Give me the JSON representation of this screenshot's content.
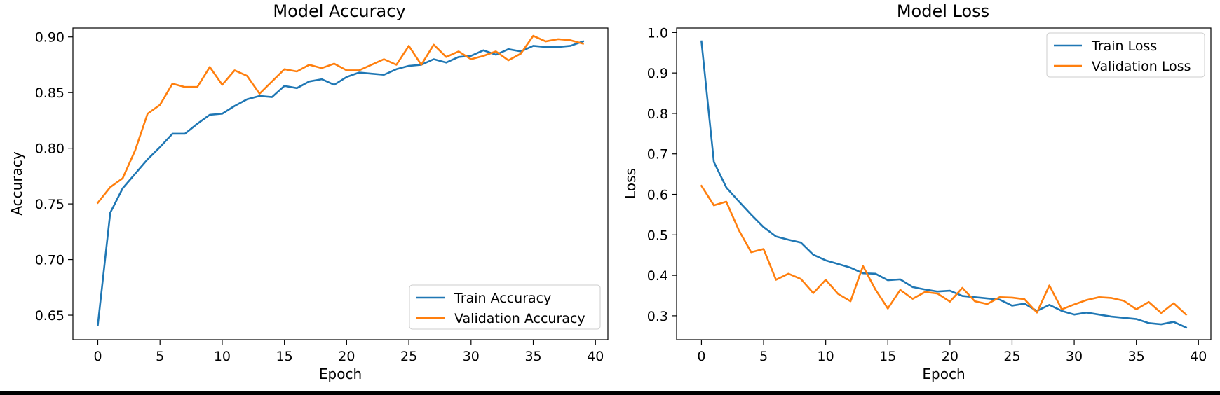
{
  "chart_data": [
    {
      "type": "line",
      "title": "Model Accuracy",
      "xlabel": "Epoch",
      "ylabel": "Accuracy",
      "xlim": [
        -2,
        41
      ],
      "ylim": [
        0.628,
        0.908
      ],
      "xticks": [
        0,
        5,
        10,
        15,
        20,
        25,
        30,
        35,
        40
      ],
      "yticks": [
        0.65,
        0.7,
        0.75,
        0.8,
        0.85,
        0.9
      ],
      "ytick_labels": [
        "0.65",
        "0.70",
        "0.75",
        "0.80",
        "0.85",
        "0.90"
      ],
      "grid": false,
      "legend_position": "lower-right",
      "x": [
        0,
        1,
        2,
        3,
        4,
        5,
        6,
        7,
        8,
        9,
        10,
        11,
        12,
        13,
        14,
        15,
        16,
        17,
        18,
        19,
        20,
        21,
        22,
        23,
        24,
        25,
        26,
        27,
        28,
        29,
        30,
        31,
        32,
        33,
        34,
        35,
        36,
        37,
        38,
        39
      ],
      "series": [
        {
          "name": "Train Accuracy",
          "color": "#1f77b4",
          "values": [
            0.641,
            0.742,
            0.764,
            0.777,
            0.79,
            0.801,
            0.813,
            0.813,
            0.822,
            0.83,
            0.831,
            0.838,
            0.844,
            0.847,
            0.846,
            0.856,
            0.854,
            0.86,
            0.862,
            0.857,
            0.864,
            0.868,
            0.867,
            0.866,
            0.871,
            0.874,
            0.875,
            0.88,
            0.877,
            0.882,
            0.883,
            0.888,
            0.884,
            0.889,
            0.887,
            0.892,
            0.891,
            0.891,
            0.892,
            0.896
          ]
        },
        {
          "name": "Validation Accuracy",
          "color": "#ff7f0e",
          "values": [
            0.751,
            0.765,
            0.773,
            0.798,
            0.831,
            0.839,
            0.858,
            0.855,
            0.855,
            0.873,
            0.857,
            0.87,
            0.865,
            0.849,
            0.86,
            0.871,
            0.869,
            0.875,
            0.872,
            0.876,
            0.87,
            0.87,
            0.875,
            0.88,
            0.875,
            0.892,
            0.875,
            0.893,
            0.882,
            0.887,
            0.88,
            0.883,
            0.887,
            0.879,
            0.885,
            0.901,
            0.896,
            0.898,
            0.897,
            0.894
          ]
        }
      ]
    },
    {
      "type": "line",
      "title": "Model Loss",
      "xlabel": "Epoch",
      "ylabel": "Loss",
      "xlim": [
        -2,
        41
      ],
      "ylim": [
        0.241,
        1.011
      ],
      "xticks": [
        0,
        5,
        10,
        15,
        20,
        25,
        30,
        35,
        40
      ],
      "yticks": [
        0.3,
        0.4,
        0.5,
        0.6,
        0.7,
        0.8,
        0.9,
        1.0
      ],
      "ytick_labels": [
        "0.3",
        "0.4",
        "0.5",
        "0.6",
        "0.7",
        "0.8",
        "0.9",
        "1.0"
      ],
      "grid": false,
      "legend_position": "upper-right",
      "x": [
        0,
        1,
        2,
        3,
        4,
        5,
        6,
        7,
        8,
        9,
        10,
        11,
        12,
        13,
        14,
        15,
        16,
        17,
        18,
        19,
        20,
        21,
        22,
        23,
        24,
        25,
        26,
        27,
        28,
        29,
        30,
        31,
        32,
        33,
        34,
        35,
        36,
        37,
        38,
        39
      ],
      "series": [
        {
          "name": "Train Loss",
          "color": "#1f77b4",
          "values": [
            0.978,
            0.68,
            0.617,
            0.583,
            0.55,
            0.519,
            0.496,
            0.488,
            0.481,
            0.451,
            0.437,
            0.428,
            0.419,
            0.405,
            0.404,
            0.388,
            0.39,
            0.371,
            0.365,
            0.36,
            0.362,
            0.349,
            0.346,
            0.343,
            0.34,
            0.325,
            0.33,
            0.312,
            0.327,
            0.312,
            0.303,
            0.308,
            0.303,
            0.298,
            0.295,
            0.292,
            0.282,
            0.279,
            0.285,
            0.271
          ]
        },
        {
          "name": "Validation Loss",
          "color": "#ff7f0e",
          "values": [
            0.621,
            0.573,
            0.582,
            0.512,
            0.457,
            0.465,
            0.389,
            0.404,
            0.391,
            0.356,
            0.389,
            0.354,
            0.336,
            0.423,
            0.365,
            0.318,
            0.364,
            0.342,
            0.359,
            0.355,
            0.335,
            0.369,
            0.336,
            0.329,
            0.346,
            0.345,
            0.341,
            0.308,
            0.375,
            0.316,
            0.328,
            0.339,
            0.346,
            0.344,
            0.337,
            0.316,
            0.334,
            0.307,
            0.331,
            0.303
          ]
        }
      ]
    }
  ]
}
